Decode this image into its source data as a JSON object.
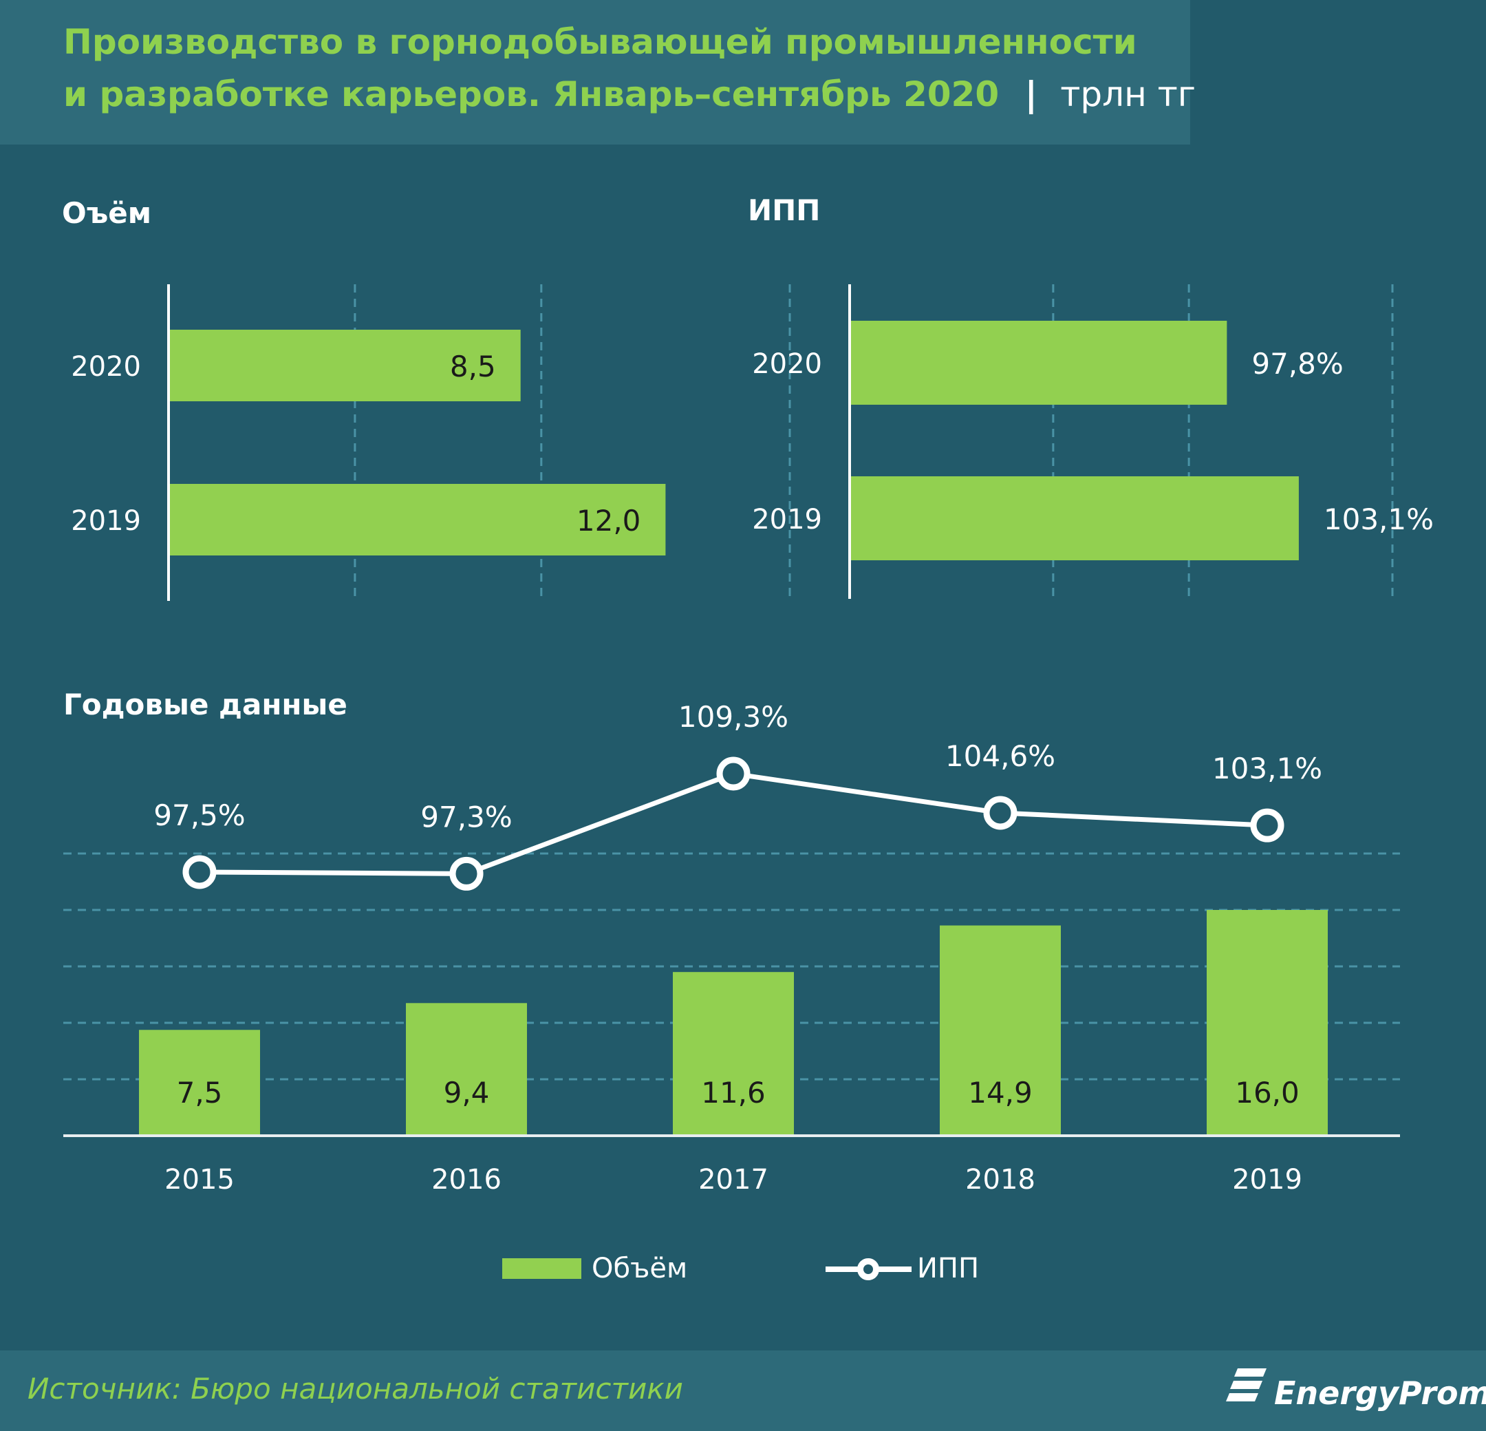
{
  "title": {
    "line1": "Производство в горнодобывающей промышленности",
    "line2": "и разработке карьеров. Январь–сентябрь 2020",
    "unit": "трлн тг"
  },
  "colors": {
    "background": "#225a6a",
    "header_band": "#2f6b7a",
    "footer_band": "#2d6a79",
    "title_green": "#8fd14f",
    "bar_green": "#92d050",
    "text_white": "#ffffff",
    "text_dark": "#1a1a1a",
    "grid": "#4a93a6"
  },
  "footer": {
    "source": "Источник: Бюро национальной  статистики",
    "logo_text": "EnergyProm",
    "logo_icon": "energyprom-logo-icon"
  },
  "chart_data": [
    {
      "id": "volume",
      "type": "bar",
      "orientation": "horizontal",
      "title": "Оъём",
      "categories": [
        "2020",
        "2019"
      ],
      "values": [
        8.5,
        12.0
      ],
      "labels": [
        "8,5",
        "12,0"
      ],
      "xlim": [
        0,
        15
      ],
      "grid": "vertical dashed",
      "label_position": "inside-end"
    },
    {
      "id": "ipp",
      "type": "bar",
      "orientation": "horizontal",
      "title": "ИПП",
      "categories": [
        "2020",
        "2019"
      ],
      "values": [
        97.8,
        103.1
      ],
      "labels": [
        "97,8%",
        "103,1%"
      ],
      "xlim": [
        70,
        110
      ],
      "grid": "vertical dashed",
      "label_position": "outside-end"
    },
    {
      "id": "annual",
      "type": "bar",
      "title": "Годовые данные",
      "categories": [
        "2015",
        "2016",
        "2017",
        "2018",
        "2019"
      ],
      "series": [
        {
          "name": "Объём",
          "type": "bar",
          "values": [
            7.5,
            9.4,
            11.6,
            14.9,
            16.0
          ],
          "labels": [
            "7,5",
            "9,4",
            "11,6",
            "14,9",
            "16,0"
          ]
        },
        {
          "name": "ИПП",
          "type": "line",
          "values": [
            97.5,
            97.3,
            109.3,
            104.6,
            103.1
          ],
          "labels": [
            "97,5%",
            "97,3%",
            "109,3%",
            "104,6%",
            "103,1%"
          ]
        }
      ],
      "ylim": [
        0,
        20
      ],
      "ylim_secondary": [
        70,
        115
      ],
      "grid": "horizontal dashed",
      "legend": "bottom-center"
    }
  ]
}
